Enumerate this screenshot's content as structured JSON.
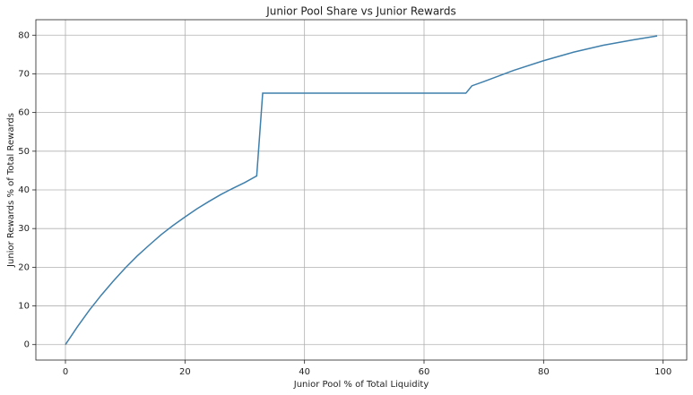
{
  "chart_data": {
    "type": "line",
    "title": "Junior Pool Share vs Junior Rewards",
    "xlabel": "Junior Pool % of Total Liquidity",
    "ylabel": "Junior Rewards % of Total Rewards",
    "x": [
      0,
      2,
      4,
      6,
      8,
      10,
      12,
      14,
      16,
      18,
      20,
      22,
      24,
      26,
      28,
      30,
      32,
      33,
      67,
      68,
      70,
      75,
      80,
      85,
      90,
      95,
      99
    ],
    "series": [
      {
        "name": "Junior Rewards",
        "color": "#3f7fab",
        "values": [
          0,
          4.6,
          8.9,
          12.8,
          16.4,
          19.8,
          22.9,
          25.7,
          28.4,
          30.8,
          33.0,
          35.1,
          37.0,
          38.8,
          40.4,
          41.9,
          43.6,
          65,
          65,
          66.9,
          68.0,
          70.9,
          73.4,
          75.6,
          77.4,
          78.8,
          79.8
        ]
      }
    ],
    "xlim": [
      -4.95,
      103.95
    ],
    "xticks": [
      0,
      20,
      40,
      60,
      80,
      100
    ],
    "ylim": [
      -4,
      84
    ],
    "yticks": [
      0,
      10,
      20,
      30,
      40,
      50,
      60,
      70,
      80
    ],
    "grid": true
  }
}
